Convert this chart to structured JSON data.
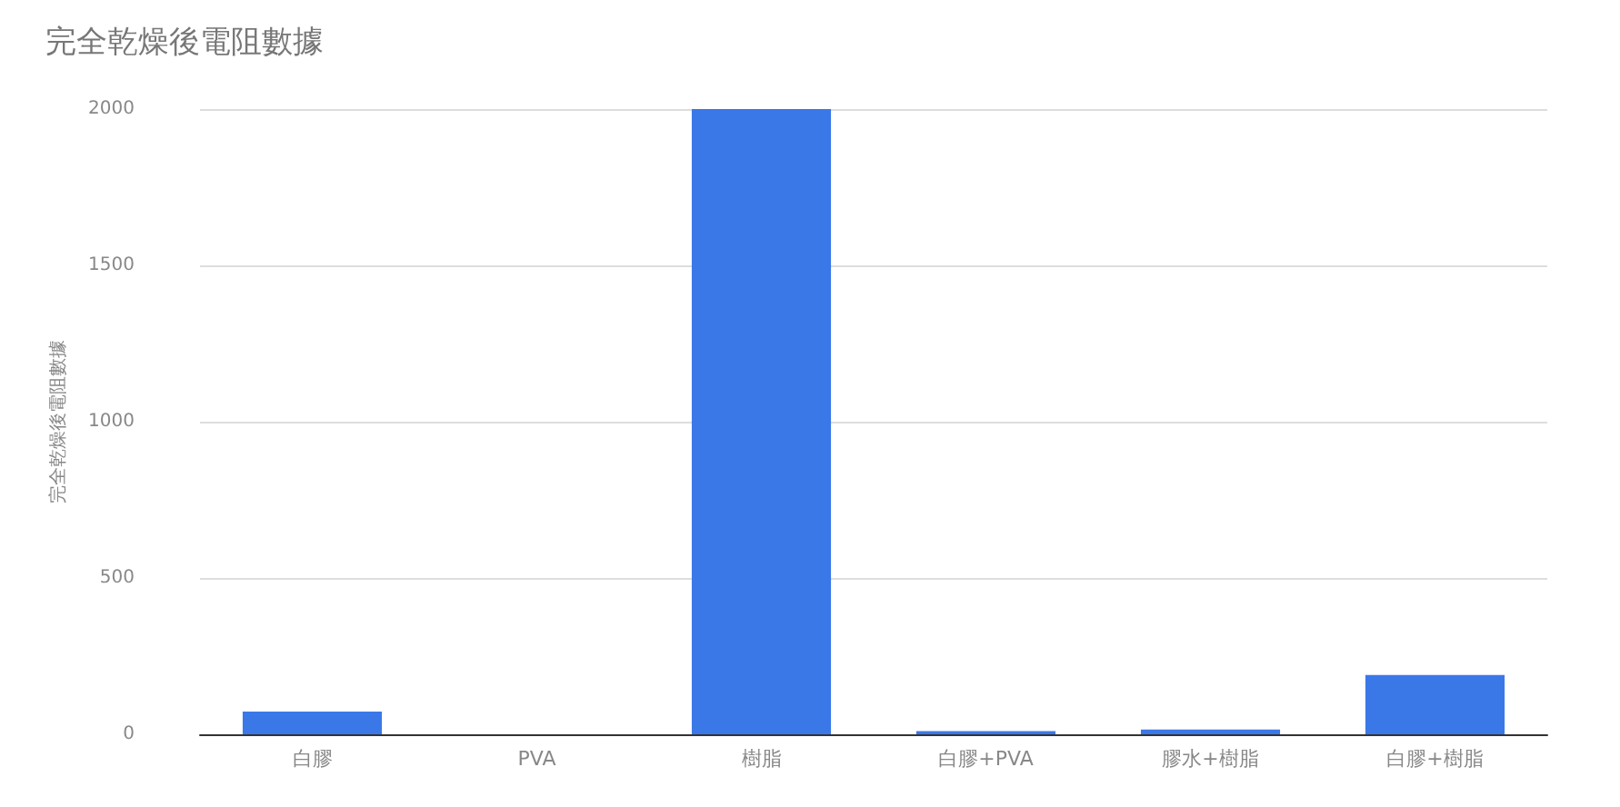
{
  "chart_data": {
    "type": "bar",
    "title": "完全乾燥後電阻數據",
    "ylabel": "完全乾燥後電阻數據",
    "categories": [
      "白膠",
      "PVA",
      "樹脂",
      "白膠+PVA",
      "膠水+樹脂",
      "白膠+樹脂"
    ],
    "values": [
      73,
      0,
      2000,
      10,
      15,
      190
    ],
    "color": "#3a78e8",
    "ylim": [
      0,
      2000
    ],
    "yticks": [
      0,
      500,
      1000,
      1500,
      2000
    ],
    "grid": "y"
  }
}
